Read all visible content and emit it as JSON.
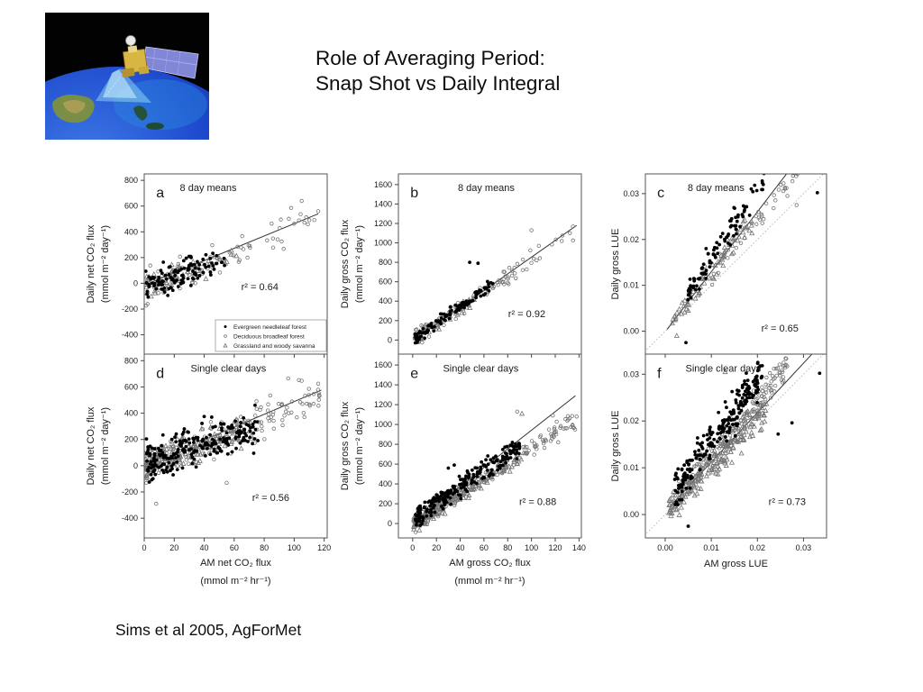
{
  "slide": {
    "title_lines": [
      "Role of Averaging Period:",
      "Snap Shot vs Daily Integral"
    ],
    "citation": "Sims et al 2005, AgForMet",
    "background": "#ffffff"
  },
  "icons": {
    "logo": "terra-satellite-over-earth-image"
  },
  "colors": {
    "marker_filled": "#000000",
    "marker_open": "#757575",
    "fit_line": "#333333",
    "one_to_one_line": "#b0b0b0",
    "frame": "#555555",
    "tick": "#444444",
    "text": "#1a1a1a",
    "legend_border": "#999999"
  },
  "legend": {
    "items": [
      {
        "marker": "filled-circle",
        "label": "Evergreen needleleaf forest"
      },
      {
        "marker": "open-circle",
        "label": "Deciduous broadleaf forest"
      },
      {
        "marker": "open-triangle",
        "label": "Grassland and woody savanna"
      }
    ]
  },
  "chart_data": [
    {
      "id": "a",
      "letter": "a",
      "subtitle": "8 day means",
      "r2_label": "r² = 0.64",
      "type": "scatter",
      "xlim": [
        0,
        122
      ],
      "ylim": [
        -550,
        850
      ],
      "xticks": [
        0,
        20,
        40,
        60,
        80,
        100,
        120
      ],
      "xtick_labels": [
        "0",
        "20",
        "40",
        "60",
        "80",
        "100",
        "120"
      ],
      "show_xtick_labels": false,
      "yticks": [
        -400,
        -200,
        0,
        200,
        400,
        600,
        800
      ],
      "ytick_labels": [
        "-400",
        "-200",
        "0",
        "200",
        "400",
        "600",
        "800"
      ],
      "ylabel_lines": [
        "Daily net CO₂ flux",
        "(mmol m⁻² day⁻¹)"
      ],
      "xlabel_lines": [],
      "fit_line": [
        [
          1,
          -10
        ],
        [
          116,
          540
        ]
      ],
      "one_to_one": null,
      "has_legend": true,
      "series": [
        {
          "name": "Evergreen needleleaf forest",
          "marker": "filled-circle",
          "n": 115,
          "x_range": [
            1,
            55
          ],
          "x_bias": 1.25,
          "slope": 4.2,
          "intercept": -25,
          "noise": 95,
          "seed": 101,
          "extra_points": []
        },
        {
          "name": "Deciduous broadleaf forest",
          "marker": "open-circle",
          "n": 85,
          "x_range": [
            1,
            118
          ],
          "x_bias": 1.6,
          "slope": 4.7,
          "intercept": -45,
          "noise": 115,
          "seed": 102,
          "extra_points": [
            [
              105,
              640
            ],
            [
              98,
              585
            ],
            [
              116,
              560
            ]
          ]
        },
        {
          "name": "Grassland and woody savanna",
          "marker": "open-triangle",
          "n": 55,
          "x_range": [
            1,
            62
          ],
          "x_bias": 1.4,
          "slope": 4.0,
          "intercept": -25,
          "noise": 75,
          "seed": 103,
          "extra_points": []
        }
      ]
    },
    {
      "id": "b",
      "letter": "b",
      "subtitle": "8 day means",
      "r2_label": "r² = 0.92",
      "type": "scatter",
      "xlim": [
        -12,
        142
      ],
      "ylim": [
        -145,
        1710
      ],
      "xticks": [
        0,
        20,
        40,
        60,
        80,
        100,
        120,
        140
      ],
      "xtick_labels": [
        "0",
        "20",
        "40",
        "60",
        "80",
        "100",
        "120",
        "140"
      ],
      "show_xtick_labels": false,
      "yticks": [
        0,
        200,
        400,
        600,
        800,
        1000,
        1200,
        1400,
        1600
      ],
      "ytick_labels": [
        "0",
        "200",
        "400",
        "600",
        "800",
        "1000",
        "1200",
        "1400",
        "1600"
      ],
      "ylabel_lines": [
        "Daily gross CO₂ flux",
        "(mmol m⁻² day⁻¹)"
      ],
      "xlabel_lines": [],
      "fit_line": [
        [
          2,
          10
        ],
        [
          138,
          1180
        ]
      ],
      "one_to_one": null,
      "has_legend": false,
      "series": [
        {
          "name": "Evergreen needleleaf forest",
          "marker": "filled-circle",
          "n": 105,
          "x_range": [
            2,
            68
          ],
          "x_bias": 1.15,
          "slope": 8.8,
          "intercept": -10,
          "noise": 55,
          "seed": 201,
          "extra_points": [
            [
              48,
              800
            ],
            [
              55,
              790
            ]
          ]
        },
        {
          "name": "Deciduous broadleaf forest",
          "marker": "open-circle",
          "n": 90,
          "x_range": [
            2,
            136
          ],
          "x_bias": 1.5,
          "slope": 8.2,
          "intercept": 0,
          "noise": 75,
          "seed": 202,
          "extra_points": [
            [
              100,
              1130
            ],
            [
              135,
              1025
            ]
          ]
        },
        {
          "name": "Grassland and woody savanna",
          "marker": "open-triangle",
          "n": 50,
          "x_range": [
            2,
            52
          ],
          "x_bias": 1.3,
          "slope": 8.0,
          "intercept": 0,
          "noise": 45,
          "seed": 203,
          "extra_points": []
        }
      ]
    },
    {
      "id": "c",
      "letter": "c",
      "subtitle": "8 day means",
      "r2_label": "r² = 0.65",
      "type": "scatter",
      "xlim": [
        -0.0043,
        0.035
      ],
      "ylim": [
        -0.005,
        0.0343
      ],
      "xticks": [
        0,
        0.01,
        0.02,
        0.03
      ],
      "xtick_labels": [
        "0.00",
        "0.01",
        "0.02",
        "0.03"
      ],
      "show_xtick_labels": false,
      "yticks": [
        0,
        0.01,
        0.02,
        0.03
      ],
      "ytick_labels": [
        "0.00",
        "0.01",
        "0.02",
        "0.03"
      ],
      "ylabel_lines": [
        "Daily gross LUE"
      ],
      "xlabel_lines": [],
      "fit_line": [
        [
          0.0004,
          0.0004
        ],
        [
          0.028,
          0.0365
        ]
      ],
      "one_to_one": [
        [
          -0.005,
          -0.005
        ],
        [
          0.036,
          0.036
        ]
      ],
      "has_legend": false,
      "series": [
        {
          "name": "Evergreen needleleaf forest",
          "marker": "filled-circle",
          "n": 95,
          "x_range": [
            0.004,
            0.0215
          ],
          "x_bias": 1.1,
          "slope": 1.45,
          "intercept": 0.0015,
          "noise": 0.0025,
          "seed": 301,
          "extra_points": [
            [
              0.033,
              0.0302
            ],
            [
              0.0045,
              -0.0025
            ]
          ]
        },
        {
          "name": "Deciduous broadleaf forest",
          "marker": "open-circle",
          "n": 45,
          "x_range": [
            0.008,
            0.0295
          ],
          "x_bias": 1.0,
          "slope": 1.2,
          "intercept": 0.0005,
          "noise": 0.002,
          "seed": 302,
          "extra_points": [
            [
              0.0265,
              0.0295
            ],
            [
              0.0285,
              0.0275
            ]
          ]
        },
        {
          "name": "Grassland and woody savanna",
          "marker": "open-triangle",
          "n": 75,
          "x_range": [
            0.0015,
            0.019
          ],
          "x_bias": 1.1,
          "slope": 1.25,
          "intercept": 0.0003,
          "noise": 0.002,
          "seed": 303,
          "extra_points": [
            [
              0.0025,
              -0.001
            ]
          ]
        }
      ]
    },
    {
      "id": "d",
      "letter": "d",
      "subtitle": "Single clear days",
      "r2_label": "r² = 0.56",
      "type": "scatter",
      "xlim": [
        0,
        122
      ],
      "ylim": [
        -550,
        850
      ],
      "xticks": [
        0,
        20,
        40,
        60,
        80,
        100,
        120
      ],
      "xtick_labels": [
        "0",
        "20",
        "40",
        "60",
        "80",
        "100",
        "120"
      ],
      "show_xtick_labels": true,
      "yticks": [
        -400,
        -200,
        0,
        200,
        400,
        600,
        800
      ],
      "ytick_labels": [
        "-400",
        "-200",
        "0",
        "200",
        "400",
        "600",
        "800"
      ],
      "ylabel_lines": [
        "Daily net CO₂ flux",
        "(mmol m⁻² day⁻¹)"
      ],
      "xlabel_lines": [
        "AM net CO₂ flux",
        "(mmol m⁻² hr⁻¹)"
      ],
      "fit_line": [
        [
          43,
          212
        ],
        [
          118,
          576
        ]
      ],
      "one_to_one": null,
      "has_legend": false,
      "series": [
        {
          "name": "Evergreen needleleaf forest",
          "marker": "filled-circle",
          "n": 215,
          "x_range": [
            1,
            76
          ],
          "x_bias": 1.15,
          "slope": 3.1,
          "intercept": 40,
          "noise": 125,
          "seed": 104,
          "extra_points": [
            [
              73,
              95
            ],
            [
              40,
              375
            ],
            [
              45,
              370
            ]
          ]
        },
        {
          "name": "Deciduous broadleaf forest",
          "marker": "open-circle",
          "n": 195,
          "x_range": [
            1,
            118
          ],
          "x_bias": 1.35,
          "slope": 4.7,
          "intercept": -15,
          "noise": 115,
          "seed": 105,
          "extra_points": [
            [
              8,
              -290
            ],
            [
              55,
              -130
            ],
            [
              96,
              665
            ],
            [
              116,
              625
            ]
          ]
        },
        {
          "name": "Grassland and woody savanna",
          "marker": "open-triangle",
          "n": 145,
          "x_range": [
            0.5,
            72
          ],
          "x_bias": 1.3,
          "slope": 3.8,
          "intercept": 0,
          "noise": 90,
          "seed": 106,
          "extra_points": []
        }
      ]
    },
    {
      "id": "e",
      "letter": "e",
      "subtitle": "Single clear days",
      "r2_label": "r² = 0.88",
      "type": "scatter",
      "xlim": [
        -12,
        142
      ],
      "ylim": [
        -145,
        1710
      ],
      "xticks": [
        0,
        20,
        40,
        60,
        80,
        100,
        120,
        140
      ],
      "xtick_labels": [
        "0",
        "20",
        "40",
        "60",
        "80",
        "100",
        "120",
        "140"
      ],
      "show_xtick_labels": true,
      "yticks": [
        0,
        200,
        400,
        600,
        800,
        1000,
        1200,
        1400,
        1600
      ],
      "ytick_labels": [
        "0",
        "200",
        "400",
        "600",
        "800",
        "1000",
        "1200",
        "1400",
        "1600"
      ],
      "ylabel_lines": [
        "Daily gross CO₂ flux",
        "(mmol m⁻² day⁻¹)"
      ],
      "xlabel_lines": [
        "AM gross CO₂ flux",
        "(mmol m⁻² hr⁻¹)"
      ],
      "fit_line": [
        [
          2,
          20
        ],
        [
          137,
          1290
        ]
      ],
      "one_to_one": null,
      "has_legend": false,
      "series": [
        {
          "name": "Evergreen needleleaf forest",
          "marker": "filled-circle",
          "n": 225,
          "x_range": [
            2,
            90
          ],
          "x_bias": 1.15,
          "slope": 8.2,
          "intercept": 40,
          "noise": 95,
          "seed": 107,
          "extra_points": [
            [
              30,
              560
            ],
            [
              35,
              590
            ]
          ]
        },
        {
          "name": "Deciduous broadleaf forest",
          "marker": "open-circle",
          "n": 210,
          "x_range": [
            2,
            140
          ],
          "x_bias": 1.45,
          "slope": 7.6,
          "intercept": 0,
          "noise": 85,
          "seed": 108,
          "extra_points": [
            [
              88,
              1130
            ],
            [
              118,
              1090
            ],
            [
              138,
              1080
            ]
          ]
        },
        {
          "name": "Grassland and woody savanna",
          "marker": "open-triangle",
          "n": 155,
          "x_range": [
            1,
            95
          ],
          "x_bias": 1.5,
          "slope": 7.2,
          "intercept": 0,
          "noise": 70,
          "seed": 109,
          "extra_points": [
            [
              92,
              1110
            ]
          ]
        }
      ]
    },
    {
      "id": "f",
      "letter": "f",
      "subtitle": "Single clear days",
      "r2_label": "r² = 0.73",
      "type": "scatter",
      "xlim": [
        -0.0043,
        0.035
      ],
      "ylim": [
        -0.005,
        0.0343
      ],
      "xticks": [
        0,
        0.01,
        0.02,
        0.03
      ],
      "xtick_labels": [
        "0.00",
        "0.01",
        "0.02",
        "0.03"
      ],
      "show_xtick_labels": true,
      "yticks": [
        0,
        0.01,
        0.02,
        0.03
      ],
      "ytick_labels": [
        "0.00",
        "0.01",
        "0.02",
        "0.03"
      ],
      "ylabel_lines": [
        "Daily gross LUE"
      ],
      "xlabel_lines": [
        "AM gross LUE"
      ],
      "fit_line": [
        [
          0.001,
          0.0017
        ],
        [
          0.0325,
          0.035
        ]
      ],
      "one_to_one": [
        [
          -0.005,
          -0.005
        ],
        [
          0.036,
          0.036
        ]
      ],
      "has_legend": false,
      "series": [
        {
          "name": "Evergreen needleleaf forest",
          "marker": "filled-circle",
          "n": 230,
          "x_range": [
            0.002,
            0.0215
          ],
          "x_bias": 1.1,
          "slope": 1.3,
          "intercept": 0.0025,
          "noise": 0.0035,
          "seed": 401,
          "extra_points": [
            [
              0.0335,
              0.0302
            ],
            [
              0.0275,
              0.0196
            ],
            [
              0.0245,
              0.0172
            ],
            [
              0.005,
              -0.0025
            ]
          ]
        },
        {
          "name": "Deciduous broadleaf forest",
          "marker": "open-circle",
          "n": 200,
          "x_range": [
            0.003,
            0.0265
          ],
          "x_bias": 1.05,
          "slope": 1.2,
          "intercept": 0.0003,
          "noise": 0.0026,
          "seed": 402,
          "extra_points": [
            [
              0.021,
              0.0295
            ],
            [
              0.0235,
              0.029
            ]
          ]
        },
        {
          "name": "Grassland and woody savanna",
          "marker": "open-triangle",
          "n": 170,
          "x_range": [
            0.0008,
            0.022
          ],
          "x_bias": 1.15,
          "slope": 1.0,
          "intercept": 0.0003,
          "noise": 0.0026,
          "seed": 403,
          "extra_points": [
            [
              0.013,
              0.0305
            ]
          ]
        }
      ]
    }
  ]
}
